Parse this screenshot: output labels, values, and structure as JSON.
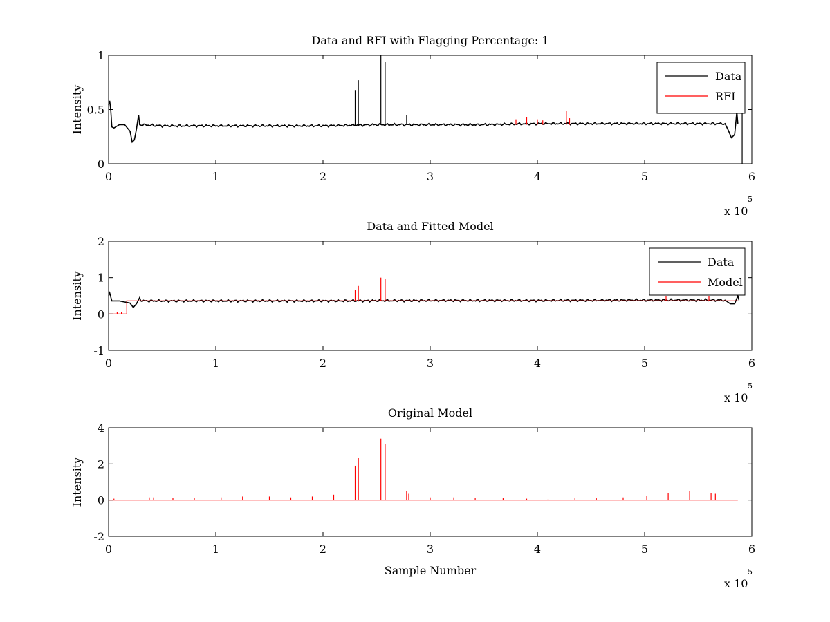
{
  "figure": {
    "exponent_label": "x 10",
    "exponent_power": "5"
  },
  "chart_data": [
    {
      "type": "line",
      "title": "Data and RFI with Flagging Percentage: 1",
      "xlabel": "",
      "ylabel": "Intensity",
      "xlim": [
        0,
        6
      ],
      "ylim": [
        0,
        1
      ],
      "x_ticks": [
        "0",
        "1",
        "2",
        "3",
        "4",
        "5",
        "6"
      ],
      "y_ticks": [
        "0",
        "0.5",
        "1"
      ],
      "x_scale_label": "x 10",
      "x_scale_power": "5",
      "legend": {
        "placement": "top-right",
        "entries": [
          "Data",
          "RFI"
        ]
      },
      "series": [
        {
          "name": "Data",
          "color": "#000000",
          "baseline": [
            [
              0,
              0.54
            ],
            [
              0.01,
              0.58
            ],
            [
              0.02,
              0.5
            ],
            [
              0.03,
              0.34
            ],
            [
              0.05,
              0.33
            ],
            [
              0.1,
              0.36
            ],
            [
              0.15,
              0.36
            ],
            [
              0.2,
              0.3
            ],
            [
              0.22,
              0.2
            ],
            [
              0.24,
              0.22
            ],
            [
              0.26,
              0.32
            ],
            [
              0.28,
              0.45
            ],
            [
              0.29,
              0.36
            ],
            [
              0.5,
              0.35
            ],
            [
              1.0,
              0.35
            ],
            [
              1.5,
              0.35
            ],
            [
              2.0,
              0.35
            ],
            [
              2.5,
              0.36
            ],
            [
              3.0,
              0.36
            ],
            [
              3.5,
              0.36
            ],
            [
              4.0,
              0.37
            ],
            [
              4.5,
              0.37
            ],
            [
              5.0,
              0.37
            ],
            [
              5.5,
              0.37
            ],
            [
              5.75,
              0.37
            ],
            [
              5.78,
              0.31
            ],
            [
              5.81,
              0.24
            ],
            [
              5.84,
              0.27
            ],
            [
              5.86,
              0.48
            ],
            [
              5.87,
              0.37
            ]
          ],
          "spikes": [
            [
              2.3,
              0.68
            ],
            [
              2.33,
              0.77
            ],
            [
              2.54,
              1.0
            ],
            [
              2.58,
              0.94
            ],
            [
              2.78,
              0.45
            ],
            [
              5.91,
              0.5
            ]
          ]
        },
        {
          "name": "RFI",
          "color": "#ff0000",
          "baseline": [],
          "spikes": [
            [
              3.8,
              0.41
            ],
            [
              3.9,
              0.43
            ],
            [
              4.0,
              0.41
            ],
            [
              4.05,
              0.4
            ],
            [
              4.27,
              0.49
            ],
            [
              4.3,
              0.42
            ]
          ]
        }
      ]
    },
    {
      "type": "line",
      "title": "Data and Fitted Model",
      "xlabel": "",
      "ylabel": "Intensity",
      "xlim": [
        0,
        6
      ],
      "ylim": [
        -1,
        2
      ],
      "x_ticks": [
        "0",
        "1",
        "2",
        "3",
        "4",
        "5",
        "6"
      ],
      "y_ticks": [
        "-1",
        "0",
        "1",
        "2"
      ],
      "x_scale_label": "x 10",
      "x_scale_power": "5",
      "legend": {
        "placement": "top-right",
        "entries": [
          "Data",
          "Model"
        ]
      },
      "series": [
        {
          "name": "Data",
          "color": "#000000",
          "baseline": [
            [
              0,
              0.5
            ],
            [
              0.01,
              0.58
            ],
            [
              0.03,
              0.36
            ],
            [
              0.1,
              0.36
            ],
            [
              0.2,
              0.3
            ],
            [
              0.23,
              0.18
            ],
            [
              0.26,
              0.28
            ],
            [
              0.29,
              0.45
            ],
            [
              0.3,
              0.36
            ],
            [
              1.0,
              0.36
            ],
            [
              2.0,
              0.36
            ],
            [
              3.0,
              0.37
            ],
            [
              4.0,
              0.37
            ],
            [
              5.0,
              0.38
            ],
            [
              5.75,
              0.38
            ],
            [
              5.8,
              0.28
            ],
            [
              5.84,
              0.28
            ],
            [
              5.87,
              0.5
            ],
            [
              5.88,
              0.38
            ]
          ],
          "spikes": []
        },
        {
          "name": "Model",
          "color": "#ff0000",
          "baseline": [
            [
              0,
              0.0
            ],
            [
              0.17,
              0.0
            ],
            [
              0.17,
              0.36
            ],
            [
              0.5,
              0.36
            ],
            [
              1.0,
              0.36
            ],
            [
              2.0,
              0.36
            ],
            [
              3.0,
              0.36
            ],
            [
              4.0,
              0.36
            ],
            [
              5.0,
              0.36
            ],
            [
              5.87,
              0.36
            ]
          ],
          "spikes": [
            [
              0.08,
              0.05
            ],
            [
              0.12,
              0.06
            ],
            [
              2.3,
              0.67
            ],
            [
              2.33,
              0.77
            ],
            [
              2.54,
              1.0
            ],
            [
              2.58,
              0.96
            ],
            [
              5.2,
              0.5
            ],
            [
              5.6,
              0.5
            ]
          ]
        }
      ]
    },
    {
      "type": "line",
      "title": "Original Model",
      "xlabel": "Sample Number",
      "ylabel": "Intensity",
      "xlim": [
        0,
        6
      ],
      "ylim": [
        -2,
        4
      ],
      "x_ticks": [
        "0",
        "1",
        "2",
        "3",
        "4",
        "5",
        "6"
      ],
      "y_ticks": [
        "-2",
        "0",
        "2",
        "4"
      ],
      "x_scale_label": "x 10",
      "x_scale_power": "5",
      "legend": null,
      "series": [
        {
          "color": "#ff0000",
          "baseline": [
            [
              0,
              0.0
            ],
            [
              5.87,
              0.0
            ]
          ],
          "spikes": [
            [
              0.05,
              0.08
            ],
            [
              0.38,
              0.15
            ],
            [
              0.42,
              0.15
            ],
            [
              0.6,
              0.12
            ],
            [
              0.8,
              0.12
            ],
            [
              1.05,
              0.15
            ],
            [
              1.25,
              0.2
            ],
            [
              1.5,
              0.2
            ],
            [
              1.7,
              0.15
            ],
            [
              1.9,
              0.2
            ],
            [
              2.1,
              0.3
            ],
            [
              2.3,
              1.9
            ],
            [
              2.33,
              2.35
            ],
            [
              2.54,
              3.4
            ],
            [
              2.58,
              3.1
            ],
            [
              2.78,
              0.5
            ],
            [
              2.8,
              0.35
            ],
            [
              3.0,
              0.15
            ],
            [
              3.22,
              0.15
            ],
            [
              3.42,
              0.12
            ],
            [
              3.68,
              0.1
            ],
            [
              3.9,
              0.08
            ],
            [
              4.1,
              0.05
            ],
            [
              4.35,
              0.1
            ],
            [
              4.55,
              0.1
            ],
            [
              4.8,
              0.15
            ],
            [
              5.02,
              0.25
            ],
            [
              5.22,
              0.4
            ],
            [
              5.42,
              0.5
            ],
            [
              5.62,
              0.4
            ],
            [
              5.66,
              0.35
            ]
          ]
        }
      ]
    }
  ]
}
